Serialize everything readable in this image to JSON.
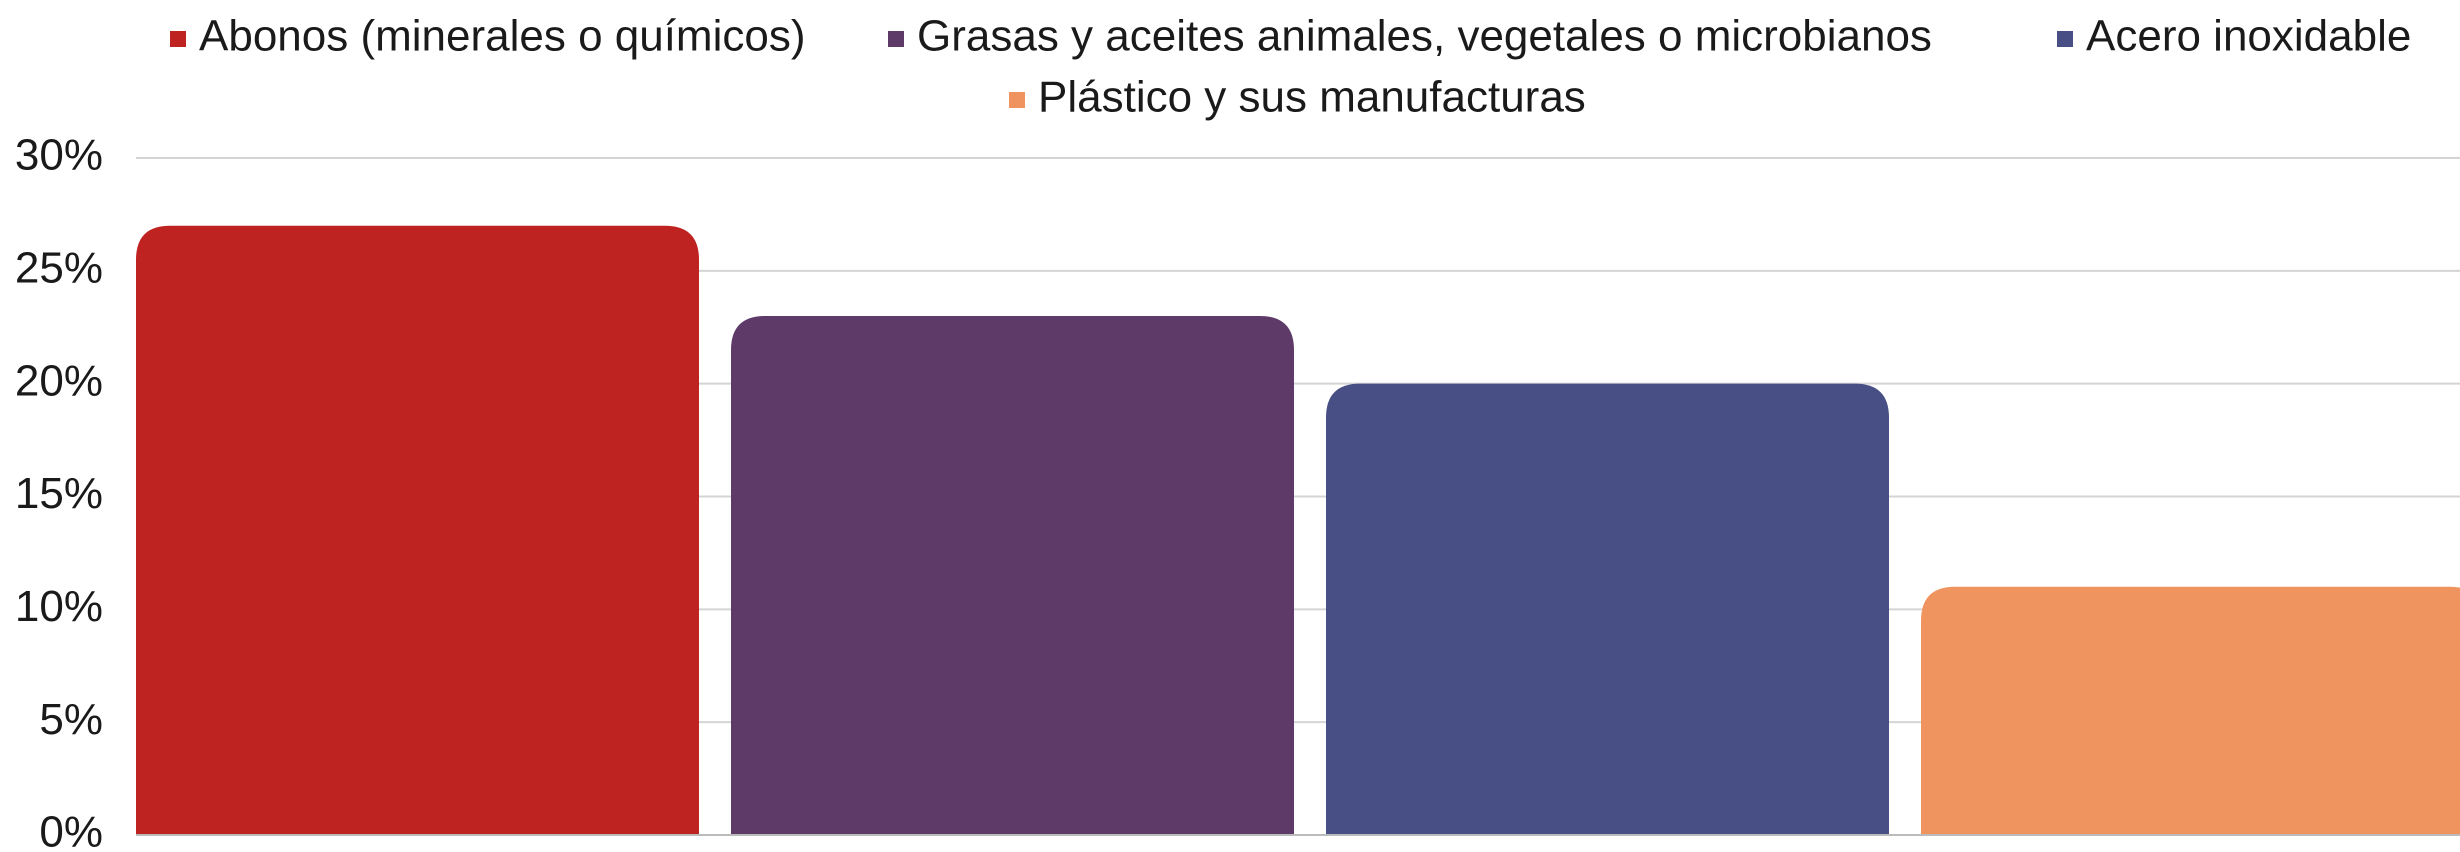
{
  "chart_data": {
    "type": "bar",
    "series": [
      {
        "name": "Abonos (minerales o químicos)",
        "color": "#be2321",
        "values": [
          27
        ]
      },
      {
        "name": "Grasas y aceites animales, vegetales o microbianos",
        "color": "#5e3a68",
        "values": [
          23
        ]
      },
      {
        "name": "Acero inoxidable",
        "color": "#474f84",
        "values": [
          20
        ]
      },
      {
        "name": "Plástico y sus manufacturas",
        "color": "#ef945f",
        "values": [
          11
        ]
      }
    ],
    "ylim": [
      0,
      30
    ],
    "yticks": [
      {
        "value": 0,
        "label": "0%"
      },
      {
        "value": 5,
        "label": "5%"
      },
      {
        "value": 10,
        "label": "10%"
      },
      {
        "value": 15,
        "label": "15%"
      },
      {
        "value": 20,
        "label": "20%"
      },
      {
        "value": 25,
        "label": "25%"
      },
      {
        "value": 30,
        "label": "30%"
      }
    ],
    "grid": true
  }
}
